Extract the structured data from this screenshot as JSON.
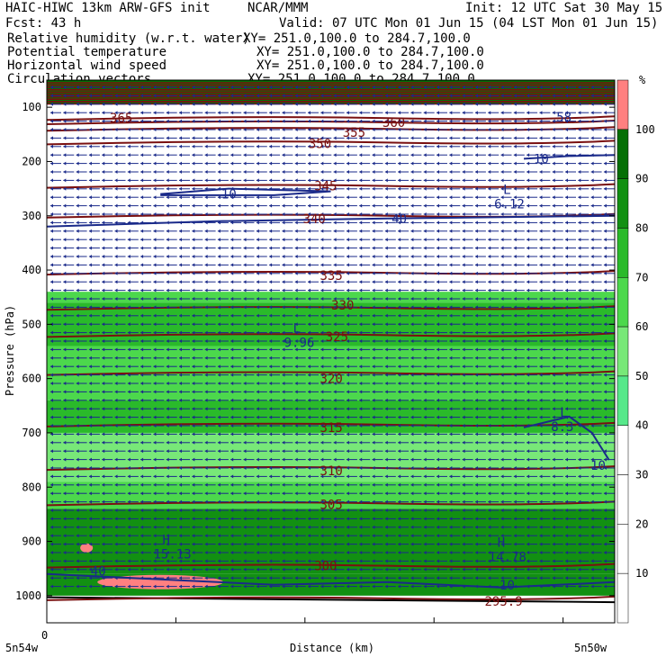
{
  "header": {
    "line1_left": "HAIC-HIWC 13km ARW-GFS init",
    "line1_mid": "NCAR/MMM",
    "line1_right": "Init: 12 UTC Sat 30 May 15",
    "line2_left": "Fcst:   43 h",
    "line2_right": "Valid: 07 UTC Mon 01 Jun 15 (04 LST Mon 01 Jun 15)"
  },
  "fields": [
    {
      "name": "Relative humidity (w.r.t. water)",
      "xy": "XY= 251.0,100.0 to 284.7,100.0",
      "color": "#2e8b2e"
    },
    {
      "name": "Potential temperature",
      "xy": "XY= 251.0,100.0 to 284.7,100.0",
      "color": "#8b1a1a"
    },
    {
      "name": "Horizontal wind speed",
      "xy": "XY= 251.0,100.0 to 284.7,100.0",
      "color": "#1c1c6e"
    },
    {
      "name": "Circulation vectors",
      "xy": "XY= 251.0,100.0 to 284.7,100.0",
      "color": "#1c1c8e"
    }
  ],
  "colors": {
    "theta": "#7a1010",
    "wind": "#1a2a8a",
    "rh_levels": [
      "#ffffff",
      "#56e88a",
      "#78e878",
      "#4cd84c",
      "#2aba2a",
      "#129012",
      "#056f05",
      "#ff8080"
    ]
  },
  "chart_data": {
    "type": "cross-section",
    "xlabel": "Distance (km)",
    "ylabel": "Pressure (hPa)",
    "x_left_label": "5n54w",
    "x_right_label": "5n50w",
    "x_zero_label": "0",
    "y_range_hpa": [
      1050,
      50
    ],
    "y_ticks": [
      "100",
      "200",
      "300",
      "400",
      "500",
      "600",
      "700",
      "800",
      "900",
      "1000"
    ],
    "y_tick_values": [
      100,
      200,
      300,
      400,
      500,
      600,
      700,
      800,
      900,
      1000
    ],
    "colorbar": {
      "unit": "%",
      "labels": [
        "10",
        "20",
        "30",
        "40",
        "50",
        "60",
        "70",
        "80",
        "90",
        "100"
      ],
      "values": [
        10,
        20,
        30,
        40,
        50,
        60,
        70,
        80,
        90,
        100
      ]
    },
    "rh_bands": [
      {
        "p_top": 50,
        "p_bot": 95,
        "rh": 100
      },
      {
        "p_top": 95,
        "p_bot": 440,
        "rh": 20
      },
      {
        "p_top": 440,
        "p_bot": 460,
        "rh": 70
      },
      {
        "p_top": 460,
        "p_bot": 540,
        "rh": 80
      },
      {
        "p_top": 540,
        "p_bot": 640,
        "rh": 70
      },
      {
        "p_top": 640,
        "p_bot": 700,
        "rh": 80
      },
      {
        "p_top": 700,
        "p_bot": 790,
        "rh": 60
      },
      {
        "p_top": 790,
        "p_bot": 840,
        "rh": 75
      },
      {
        "p_top": 840,
        "p_bot": 960,
        "rh": 90
      },
      {
        "p_top": 960,
        "p_bot": 1000,
        "rh": 95
      }
    ],
    "theta_levels": [
      {
        "value": "365",
        "p": 120
      },
      {
        "value": "360",
        "p": 128
      },
      {
        "value": "355",
        "p": 140
      },
      {
        "value": "350",
        "p": 165
      },
      {
        "value": "345",
        "p": 245
      },
      {
        "value": "340",
        "p": 300
      },
      {
        "value": "335",
        "p": 405
      },
      {
        "value": "330",
        "p": 470
      },
      {
        "value": "325",
        "p": 520
      },
      {
        "value": "320",
        "p": 590
      },
      {
        "value": "315",
        "p": 685
      },
      {
        "value": "310",
        "p": 765
      },
      {
        "value": "305",
        "p": 830
      },
      {
        "value": "300",
        "p": 945
      },
      {
        "value": "295.9",
        "p": 1005
      }
    ],
    "theta_labels": [
      {
        "text": "365",
        "x": 13,
        "p": 120
      },
      {
        "text": "360",
        "x": 61,
        "p": 128
      },
      {
        "text": "355",
        "x": 54,
        "p": 146
      },
      {
        "text": "350",
        "x": 48,
        "p": 167
      },
      {
        "text": "345",
        "x": 49,
        "p": 245
      },
      {
        "text": "340",
        "x": 47,
        "p": 305
      },
      {
        "text": "335",
        "x": 50,
        "p": 410
      },
      {
        "text": "330",
        "x": 52,
        "p": 465
      },
      {
        "text": "325",
        "x": 51,
        "p": 523
      },
      {
        "text": "320",
        "x": 50,
        "p": 600
      },
      {
        "text": "315",
        "x": 50,
        "p": 690
      },
      {
        "text": "310",
        "x": 50,
        "p": 770
      },
      {
        "text": "305",
        "x": 50,
        "p": 832
      },
      {
        "text": "300",
        "x": 49,
        "p": 945
      },
      {
        "text": "295.9",
        "x": 79,
        "p": 1010
      }
    ],
    "wind_labels": [
      {
        "text": "10",
        "x": 32,
        "p": 260
      },
      {
        "text": "40",
        "x": 62,
        "p": 305
      },
      {
        "text": "10",
        "x": 87,
        "p": 195
      },
      {
        "text": "10",
        "x": 97,
        "p": 760
      },
      {
        "text": "10",
        "x": 81,
        "p": 980
      },
      {
        "text": "40",
        "x": 9,
        "p": 955
      },
      {
        "text": "58",
        "x": 91,
        "p": 118
      }
    ],
    "extrema": [
      {
        "letter": "L",
        "value": "6.12",
        "x": 81,
        "p": 270
      },
      {
        "letter": "L",
        "value": "9.96",
        "x": 44,
        "p": 525
      },
      {
        "letter": "L",
        "value": "8.3",
        "x": 91,
        "p": 680
      },
      {
        "letter": "H",
        "value": "15.13",
        "x": 21,
        "p": 915
      },
      {
        "letter": "H",
        "value": "14.78",
        "x": 80,
        "p": 920
      }
    ]
  }
}
